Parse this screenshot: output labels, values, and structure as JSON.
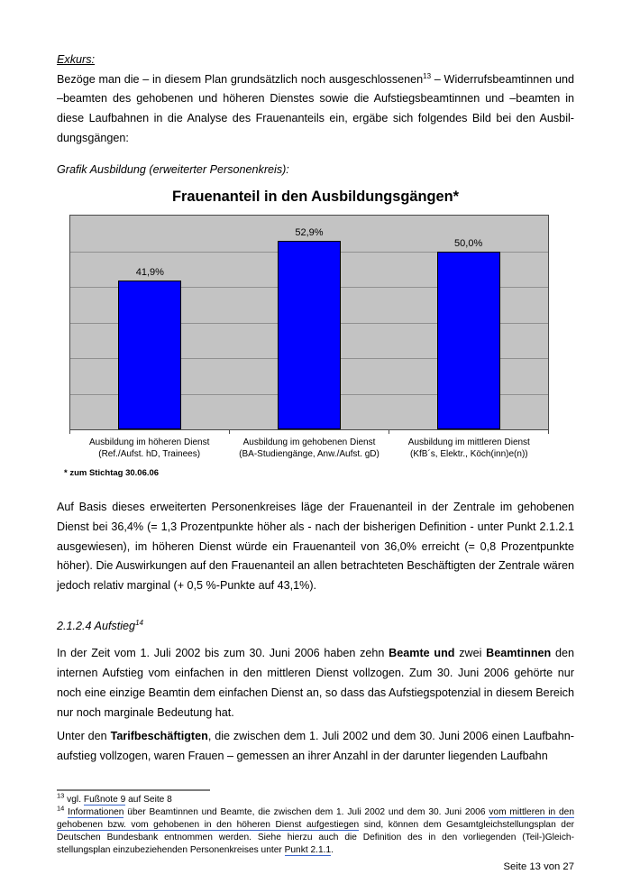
{
  "doc": {
    "exkurs_heading": "Exkurs:",
    "para1": {
      "pre": "Bezöge man die – in diesem Plan grundsätzlich noch ausgeschlossenen",
      "sup": "13",
      "post": " – Widerrufsbeamtinnen und –beamten des gehobenen und höheren Dienstes sowie die Aufstiegsbeamtinnen und –beamten in diese Laufbahnen in die Analyse des Frauenanteils ein, ergäbe sich folgendes Bild bei den Ausbil­dungsgängen:"
    },
    "grafik_caption": "Grafik Ausbildung (erweiterter Personenkreis):",
    "para2": "Auf Basis dieses erweiterten Personenkreises läge der Frauenanteil in der Zentrale im gehobenen Dienst bei 36,4% (= 1,3 Prozentpunkte höher als - nach der bisherigen Definition - unter Punkt 2.1.2.1 ausgewiesen), im höheren Dienst würde ein Frauenanteil von 36,0% erreicht (= 0,8 Prozentpunkte höher). Die Auswirkungen auf den Frauenanteil an allen betrachteten Beschäftigten der Zentrale wären jedoch relativ marginal (+ 0,5 %-Punkte auf 43,1%).",
    "heading_2124": {
      "text": "2.1.2.4 Aufstieg",
      "sup": "14"
    },
    "para3": {
      "s1": "In der Zeit vom 1. Juli 2002 bis zum 30. Juni 2006 haben zehn ",
      "b1": "Beamte und",
      "s2": " zwei ",
      "b2": "Beamtinnen",
      "s3": " den internen Aufstieg vom einfachen in den mittleren Dienst vollzogen. Zum 30. Juni 2006 gehörte nur noch eine einzige Beamtin dem einfachen Dienst an, so dass das Aufstiegspotenzial in diesem Bereich nur noch marginale Bedeutung hat."
    },
    "para4": {
      "s1": "Unter den ",
      "b1": "Tarifbeschäftigten",
      "s2": ", die zwischen dem 1. Juli 2002 und dem 30. Juni 2006 einen Laufbahn­aufstieg vollzogen, waren Frauen – gemessen an ihrer Anzahl in der darunter liegenden Laufbahn"
    },
    "footnotes": {
      "fn13": {
        "sup": "13",
        "s1": " vgl. ",
        "link1": "Fußnote 9",
        "s2": " auf Seite 8"
      },
      "fn14": {
        "sup": "14",
        "s1": " ",
        "link1": "Informationen",
        "s2": " über Beamtinnen und Beamte, die zwischen dem 1. Juli 2002 und dem 30. Juni 2006 ",
        "link2": "vom mittleren in den gehobenen bzw. vom gehobenen in den höheren Dienst aufgestiegen",
        "s3": " sind, können dem Gesamtgleichstellungsplan der Deutschen Bundesbank entnommen werden. Siehe hierzu auch die Definition des in den vorliegenden (Teil-)Gleich­stellungsplan einzubeziehenden Personenkreises unter ",
        "link3": "Punkt 2.1.1",
        "s4": "."
      }
    },
    "footer_page": "Seite 13 von 27"
  },
  "chart_data": {
    "type": "bar",
    "title": "Frauenanteil in den Ausbildungsgängen*",
    "categories": [
      "Ausbildung im höheren Dienst (Ref./Aufst. hD, Trainees)",
      "Ausbildung im gehobenen Dienst (BA-Studiengänge, Anw./Aufst. gD)",
      "Ausbildung im mittleren Dienst (KfB´s, Elektr., Köch(inn)e(n))"
    ],
    "category_lines": [
      {
        "line1": "Ausbildung im höheren Dienst",
        "line2": "(Ref./Aufst. hD, Trainees)"
      },
      {
        "line1": "Ausbildung im gehobenen Dienst",
        "line2": "(BA-Studiengänge, Anw./Aufst. gD)"
      },
      {
        "line1": "Ausbildung im mittleren Dienst",
        "line2": "(KfB´s, Elektr., Köch(inn)e(n))"
      }
    ],
    "values": [
      41.9,
      52.9,
      50.0
    ],
    "value_labels": [
      "41,9%",
      "52,9%",
      "50,0%"
    ],
    "xlabel": "",
    "ylabel": "",
    "ylim": [
      0,
      60
    ],
    "grid_step": 10,
    "grid": true,
    "legend": false,
    "y_tick_labels_visible": false,
    "bar_color": "#0000ff",
    "bar_border_color": "#000000",
    "plot_bg_color": "#c3c3c3",
    "grid_color": "#909090",
    "footnote": "* zum Stichtag 30.06.06"
  }
}
